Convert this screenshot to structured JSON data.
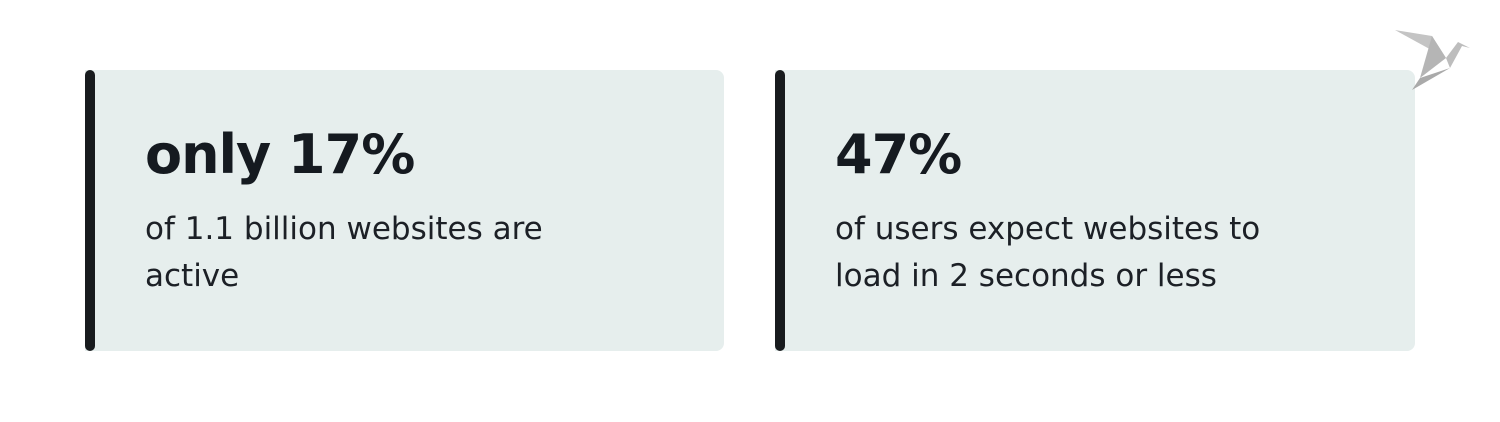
{
  "cards": [
    {
      "title": "only 17%",
      "text": "of 1.1 billion websites are active"
    },
    {
      "title": "47%",
      "text": "of users expect websites to load in 2 seconds or less"
    }
  ]
}
